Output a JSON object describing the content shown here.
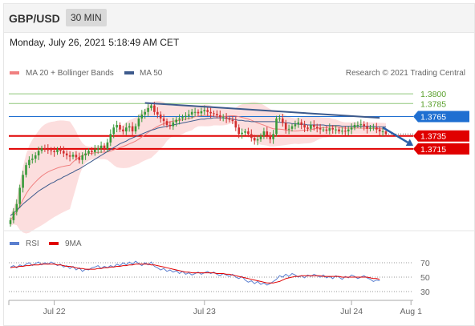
{
  "header": {
    "symbol": "GBP/USD",
    "timeframe": "30 MIN"
  },
  "datetime": "Monday, July 26, 2021 5:18:49 AM CET",
  "legend": {
    "bollinger": "MA 20 + Bollinger Bands",
    "ma50": "MA 50",
    "credit": "Research © 2021 Trading Central",
    "rsi": "RSI",
    "ma9": "9MA"
  },
  "colors": {
    "bollinger": "#f08080",
    "band_fill": "#fbd3d3",
    "ma50": "#3d5a8c",
    "resistance_green": "#8fc77a",
    "current_blue": "#1f6fd1",
    "support_red": "#e00000",
    "rsi": "#5b7fcf",
    "rsi_ma": "#e00000",
    "up_candle": "#3a9a3a",
    "down_candle": "#d23030"
  },
  "chart_data": {
    "type": "candlestick",
    "x_ticks": [
      {
        "label": "Jul 22",
        "index": 14
      },
      {
        "label": "Jul 23",
        "index": 62
      },
      {
        "label": "Jul 24",
        "index": 109
      },
      {
        "label": "Aug 1",
        "index": 128
      }
    ],
    "price_levels": [
      {
        "value": "1.3800",
        "kind": "resistance",
        "price": 1.38
      },
      {
        "value": "1.3785",
        "kind": "resistance",
        "price": 1.3785
      },
      {
        "value": "1.3765",
        "kind": "current",
        "price": 1.3765
      },
      {
        "value": "1.3735",
        "kind": "support",
        "price": 1.3735
      },
      {
        "value": "1.3715",
        "kind": "support",
        "price": 1.3715
      }
    ],
    "price_range": [
      1.3595,
      1.3815
    ],
    "close_series": [
      1.3605,
      1.3618,
      1.363,
      1.3655,
      1.3675,
      1.369,
      1.3698,
      1.37,
      1.3705,
      1.3712,
      1.3716,
      1.3715,
      1.3713,
      1.3712,
      1.371,
      1.3714,
      1.3712,
      1.3708,
      1.3705,
      1.3703,
      1.3706,
      1.3702,
      1.3698,
      1.3705,
      1.3708,
      1.3712,
      1.371,
      1.3714,
      1.3716,
      1.372,
      1.3715,
      1.3725,
      1.3738,
      1.3748,
      1.3752,
      1.3745,
      1.3742,
      1.3748,
      1.375,
      1.3742,
      1.375,
      1.3762,
      1.3768,
      1.3772,
      1.3778,
      1.3782,
      1.3772,
      1.3768,
      1.3762,
      1.3758,
      1.3752,
      1.375,
      1.3756,
      1.376,
      1.3762,
      1.3764,
      1.3766,
      1.3768,
      1.3772,
      1.3772,
      1.377,
      1.3773,
      1.3775,
      1.3772,
      1.377,
      1.3769,
      1.3767,
      1.3764,
      1.3764,
      1.3762,
      1.376,
      1.3758,
      1.3748,
      1.3738,
      1.374,
      1.3742,
      1.3738,
      1.3732,
      1.3728,
      1.373,
      1.3735,
      1.3742,
      1.3736,
      1.373,
      1.3738,
      1.3762,
      1.3762,
      1.3755,
      1.3745,
      1.3746,
      1.375,
      1.3753,
      1.3756,
      1.3752,
      1.3748,
      1.3746,
      1.3752,
      1.3749,
      1.3747,
      1.3745,
      1.3745,
      1.3743,
      1.3747,
      1.3745,
      1.3745,
      1.3742,
      1.3743,
      1.3742,
      1.3745,
      1.3748,
      1.3752,
      1.3752,
      1.3753,
      1.375,
      1.3746,
      1.3748,
      1.3748,
      1.3745,
      1.3742,
      1.3742,
      1.3738
    ],
    "ma50_series": [
      1.3612,
      1.3616,
      1.362,
      1.3625,
      1.363,
      1.3634,
      1.3638,
      1.3642,
      1.3646,
      1.365,
      1.3653,
      1.3656,
      1.3659,
      1.3662,
      1.3664,
      1.3667,
      1.3669,
      1.3672,
      1.3674,
      1.3677,
      1.3679,
      1.3682,
      1.3684,
      1.3687,
      1.369,
      1.3693,
      1.3696,
      1.3699,
      1.3702,
      1.3705,
      1.3708,
      1.3711,
      1.3714,
      1.3717,
      1.372,
      1.3723,
      1.3725,
      1.3727,
      1.373,
      1.3732,
      1.3734,
      1.3736,
      1.3738,
      1.374,
      1.3742,
      1.3744,
      1.3745,
      1.3747,
      1.3748,
      1.3749,
      1.375,
      1.3751,
      1.3752,
      1.3753,
      1.3754,
      1.3755,
      1.3756,
      1.3757,
      1.3758,
      1.3759,
      1.376,
      1.3761,
      1.3761,
      1.3762,
      1.3762,
      1.3763,
      1.3763,
      1.3763,
      1.3763,
      1.3762,
      1.3762,
      1.3761,
      1.376,
      1.3759,
      1.3759,
      1.3758,
      1.3758,
      1.3757,
      1.3757,
      1.3757,
      1.3757,
      1.3757,
      1.3757,
      1.3757,
      1.3757,
      1.3757,
      1.3756,
      1.3756,
      1.3755,
      1.3755,
      1.3754,
      1.3754,
      1.3753,
      1.3753,
      1.3753,
      1.3752,
      1.3752,
      1.3752,
      1.3752,
      1.3752,
      1.3752,
      1.3751,
      1.3751,
      1.3751,
      1.3751,
      1.3751,
      1.375,
      1.375,
      1.375,
      1.375,
      1.375,
      1.375,
      1.375,
      1.375,
      1.375,
      1.375,
      1.375,
      1.3749,
      1.3749,
      1.3749,
      1.3749
    ],
    "trendline": [
      {
        "index": 43,
        "price": 1.3786
      },
      {
        "index": 118,
        "price": 1.3763
      }
    ],
    "projection_arrow": [
      {
        "index": 119,
        "price": 1.3748
      },
      {
        "index": 128,
        "price": 1.3725
      }
    ],
    "rsi": {
      "levels": [
        "70",
        "50",
        "30"
      ],
      "range": [
        20,
        80
      ],
      "rsi_series": [
        64,
        66,
        63,
        67,
        65,
        68,
        70,
        66,
        69,
        71,
        67,
        70,
        68,
        71,
        69,
        66,
        68,
        64,
        66,
        62,
        65,
        60,
        63,
        58,
        61,
        60,
        63,
        64,
        66,
        62,
        65,
        63,
        66,
        64,
        68,
        66,
        70,
        67,
        71,
        68,
        72,
        69,
        66,
        70,
        67,
        71,
        65,
        63,
        60,
        62,
        58,
        60,
        57,
        59,
        55,
        58,
        54,
        56,
        53,
        55,
        57,
        54,
        56,
        58,
        55,
        57,
        54,
        52,
        55,
        53,
        51,
        54,
        50,
        48,
        51,
        46,
        43,
        45,
        41,
        44,
        40,
        42,
        39,
        41,
        44,
        47,
        52,
        50,
        54,
        51,
        55,
        53,
        50,
        52,
        49,
        53,
        51,
        54,
        52,
        50,
        53,
        49,
        51,
        48,
        52,
        50,
        47,
        51,
        49,
        53,
        51,
        48,
        50,
        52,
        49,
        47,
        44,
        46,
        45
      ],
      "ma9_series": [
        63,
        64,
        64,
        65,
        65,
        66,
        66,
        67,
        67,
        67,
        68,
        68,
        68,
        68,
        68,
        67,
        67,
        66,
        65,
        65,
        64,
        63,
        62,
        62,
        61,
        61,
        61,
        61,
        62,
        62,
        63,
        63,
        64,
        64,
        65,
        65,
        66,
        66,
        67,
        67,
        68,
        68,
        68,
        68,
        68,
        67,
        67,
        66,
        65,
        64,
        63,
        62,
        61,
        60,
        59,
        58,
        57,
        57,
        56,
        56,
        56,
        56,
        56,
        56,
        56,
        56,
        55,
        55,
        55,
        54,
        54,
        53,
        52,
        51,
        50,
        49,
        48,
        47,
        46,
        45,
        44,
        43,
        42,
        42,
        42,
        43,
        44,
        46,
        48,
        49,
        50,
        51,
        51,
        52,
        52,
        52,
        52,
        52,
        52,
        52,
        51,
        51,
        51,
        51,
        51,
        51,
        50,
        50,
        50,
        50,
        50,
        50,
        50,
        50,
        50,
        49,
        48,
        48,
        47
      ]
    }
  }
}
